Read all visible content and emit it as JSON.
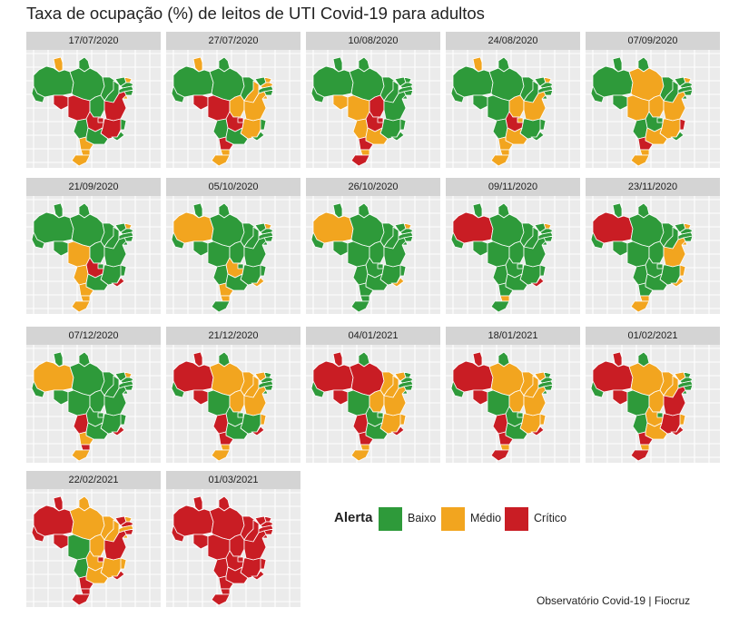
{
  "title": "Taxa de ocupação (%) de leitos de UTI Covid-19 para adultos",
  "legend": {
    "title": "Alerta",
    "items": [
      {
        "key": "baixo",
        "label": "Baixo",
        "color": "#2e9a3a"
      },
      {
        "key": "medio",
        "label": "Médio",
        "color": "#f2a51f"
      },
      {
        "key": "critico",
        "label": "Crítico",
        "color": "#c91d24"
      }
    ]
  },
  "source": "Observatório Covid-19 | Fiocruz",
  "state_order": [
    "RR",
    "AP",
    "AM",
    "PA",
    "AC",
    "RO",
    "MT",
    "TO",
    "MA",
    "PI",
    "CE",
    "RN",
    "PB",
    "PE",
    "AL",
    "SE",
    "BA",
    "GO",
    "DF",
    "MS",
    "MG",
    "ES",
    "RJ",
    "SP",
    "PR",
    "SC",
    "RS"
  ],
  "panels": [
    {
      "date": "17/07/2020",
      "status": {
        "RR": "medio",
        "AP": "baixo",
        "AM": "baixo",
        "PA": "baixo",
        "AC": "baixo",
        "RO": "critico",
        "MT": "critico",
        "TO": "baixo",
        "MA": "baixo",
        "PI": "baixo",
        "CE": "baixo",
        "RN": "medio",
        "PB": "baixo",
        "PE": "baixo",
        "AL": "baixo",
        "SE": "medio",
        "BA": "critico",
        "GO": "critico",
        "DF": "critico",
        "MS": "baixo",
        "MG": "critico",
        "ES": "baixo",
        "RJ": "baixo",
        "SP": "baixo",
        "PR": "medio",
        "SC": "medio",
        "RS": "medio"
      }
    },
    {
      "date": "27/07/2020",
      "status": {
        "RR": "medio",
        "AP": "baixo",
        "AM": "baixo",
        "PA": "baixo",
        "AC": "baixo",
        "RO": "critico",
        "MT": "critico",
        "TO": "medio",
        "MA": "baixo",
        "PI": "medio",
        "CE": "baixo",
        "RN": "medio",
        "PB": "medio",
        "PE": "baixo",
        "AL": "baixo",
        "SE": "medio",
        "BA": "medio",
        "GO": "critico",
        "DF": "critico",
        "MS": "baixo",
        "MG": "medio",
        "ES": "baixo",
        "RJ": "baixo",
        "SP": "baixo",
        "PR": "critico",
        "SC": "medio",
        "RS": "medio"
      }
    },
    {
      "date": "10/08/2020",
      "status": {
        "RR": "baixo",
        "AP": "baixo",
        "AM": "baixo",
        "PA": "baixo",
        "AC": "baixo",
        "RO": "medio",
        "MT": "medio",
        "TO": "critico",
        "MA": "baixo",
        "PI": "baixo",
        "CE": "baixo",
        "RN": "baixo",
        "PB": "baixo",
        "PE": "baixo",
        "AL": "baixo",
        "SE": "baixo",
        "BA": "baixo",
        "GO": "critico",
        "DF": "critico",
        "MS": "medio",
        "MG": "baixo",
        "ES": "baixo",
        "RJ": "baixo",
        "SP": "medio",
        "PR": "critico",
        "SC": "medio",
        "RS": "critico"
      }
    },
    {
      "date": "24/08/2020",
      "status": {
        "RR": "medio",
        "AP": "baixo",
        "AM": "baixo",
        "PA": "baixo",
        "AC": "baixo",
        "RO": "baixo",
        "MT": "baixo",
        "TO": "medio",
        "MA": "baixo",
        "PI": "baixo",
        "CE": "baixo",
        "RN": "medio",
        "PB": "baixo",
        "PE": "baixo",
        "AL": "baixo",
        "SE": "baixo",
        "BA": "medio",
        "GO": "critico",
        "DF": "medio",
        "MS": "baixo",
        "MG": "baixo",
        "ES": "baixo",
        "RJ": "baixo",
        "SP": "medio",
        "PR": "medio",
        "SC": "medio",
        "RS": "medio"
      }
    },
    {
      "date": "07/09/2020",
      "status": {
        "RR": "baixo",
        "AP": "baixo",
        "AM": "baixo",
        "PA": "medio",
        "AC": "baixo",
        "RO": "baixo",
        "MT": "medio",
        "TO": "medio",
        "MA": "baixo",
        "PI": "baixo",
        "CE": "baixo",
        "RN": "medio",
        "PB": "baixo",
        "PE": "baixo",
        "AL": "baixo",
        "SE": "baixo",
        "BA": "medio",
        "GO": "baixo",
        "DF": "baixo",
        "MS": "baixo",
        "MG": "medio",
        "ES": "critico",
        "RJ": "baixo",
        "SP": "medio",
        "PR": "critico",
        "SC": "medio",
        "RS": "medio"
      }
    },
    {
      "date": "21/09/2020",
      "status": {
        "RR": "baixo",
        "AP": "baixo",
        "AM": "baixo",
        "PA": "baixo",
        "AC": "baixo",
        "RO": "baixo",
        "MT": "medio",
        "TO": "baixo",
        "MA": "baixo",
        "PI": "baixo",
        "CE": "baixo",
        "RN": "medio",
        "PB": "baixo",
        "PE": "baixo",
        "AL": "baixo",
        "SE": "baixo",
        "BA": "baixo",
        "GO": "critico",
        "DF": "baixo",
        "MS": "medio",
        "MG": "baixo",
        "ES": "baixo",
        "RJ": "critico",
        "SP": "baixo",
        "PR": "medio",
        "SC": "medio",
        "RS": "medio"
      }
    },
    {
      "date": "05/10/2020",
      "status": {
        "RR": "baixo",
        "AP": "baixo",
        "AM": "medio",
        "PA": "baixo",
        "AC": "baixo",
        "RO": "baixo",
        "MT": "baixo",
        "TO": "baixo",
        "MA": "baixo",
        "PI": "baixo",
        "CE": "baixo",
        "RN": "medio",
        "PB": "baixo",
        "PE": "baixo",
        "AL": "baixo",
        "SE": "baixo",
        "BA": "baixo",
        "GO": "medio",
        "DF": "baixo",
        "MS": "baixo",
        "MG": "baixo",
        "ES": "baixo",
        "RJ": "medio",
        "SP": "baixo",
        "PR": "medio",
        "SC": "medio",
        "RS": "baixo"
      }
    },
    {
      "date": "26/10/2020",
      "status": {
        "RR": "baixo",
        "AP": "baixo",
        "AM": "medio",
        "PA": "baixo",
        "AC": "baixo",
        "RO": "baixo",
        "MT": "baixo",
        "TO": "baixo",
        "MA": "baixo",
        "PI": "baixo",
        "CE": "baixo",
        "RN": "medio",
        "PB": "baixo",
        "PE": "baixo",
        "AL": "baixo",
        "SE": "baixo",
        "BA": "baixo",
        "GO": "baixo",
        "DF": "baixo",
        "MS": "baixo",
        "MG": "baixo",
        "ES": "baixo",
        "RJ": "medio",
        "SP": "baixo",
        "PR": "baixo",
        "SC": "baixo",
        "RS": "baixo"
      }
    },
    {
      "date": "09/11/2020",
      "status": {
        "RR": "baixo",
        "AP": "baixo",
        "AM": "critico",
        "PA": "baixo",
        "AC": "baixo",
        "RO": "baixo",
        "MT": "baixo",
        "TO": "baixo",
        "MA": "baixo",
        "PI": "baixo",
        "CE": "baixo",
        "RN": "medio",
        "PB": "baixo",
        "PE": "baixo",
        "AL": "baixo",
        "SE": "baixo",
        "BA": "baixo",
        "GO": "baixo",
        "DF": "baixo",
        "MS": "baixo",
        "MG": "baixo",
        "ES": "baixo",
        "RJ": "critico",
        "SP": "baixo",
        "PR": "baixo",
        "SC": "medio",
        "RS": "baixo"
      }
    },
    {
      "date": "23/11/2020",
      "status": {
        "RR": "baixo",
        "AP": "baixo",
        "AM": "critico",
        "PA": "baixo",
        "AC": "baixo",
        "RO": "baixo",
        "MT": "baixo",
        "TO": "baixo",
        "MA": "baixo",
        "PI": "baixo",
        "CE": "baixo",
        "RN": "medio",
        "PB": "baixo",
        "PE": "baixo",
        "AL": "baixo",
        "SE": "medio",
        "BA": "medio",
        "GO": "baixo",
        "DF": "baixo",
        "MS": "baixo",
        "MG": "baixo",
        "ES": "medio",
        "RJ": "medio",
        "SP": "baixo",
        "PR": "baixo",
        "SC": "medio",
        "RS": "medio"
      }
    },
    {
      "date": "07/12/2020",
      "status": {
        "RR": "baixo",
        "AP": "baixo",
        "AM": "medio",
        "PA": "baixo",
        "AC": "baixo",
        "RO": "baixo",
        "MT": "baixo",
        "TO": "baixo",
        "MA": "baixo",
        "PI": "baixo",
        "CE": "baixo",
        "RN": "medio",
        "PB": "baixo",
        "PE": "baixo",
        "AL": "baixo",
        "SE": "baixo",
        "BA": "baixo",
        "GO": "baixo",
        "DF": "baixo",
        "MS": "critico",
        "MG": "baixo",
        "ES": "baixo",
        "RJ": "critico",
        "SP": "baixo",
        "PR": "medio",
        "SC": "critico",
        "RS": "medio"
      }
    },
    {
      "date": "21/12/2020",
      "status": {
        "RR": "critico",
        "AP": "baixo",
        "AM": "critico",
        "PA": "medio",
        "AC": "baixo",
        "RO": "critico",
        "MT": "baixo",
        "TO": "medio",
        "MA": "medio",
        "PI": "medio",
        "CE": "medio",
        "RN": "baixo",
        "PB": "baixo",
        "PE": "baixo",
        "AL": "baixo",
        "SE": "baixo",
        "BA": "medio",
        "GO": "baixo",
        "DF": "baixo",
        "MS": "critico",
        "MG": "baixo",
        "ES": "medio",
        "RJ": "critico",
        "SP": "baixo",
        "PR": "critico",
        "SC": "medio",
        "RS": "medio"
      }
    },
    {
      "date": "04/01/2021",
      "status": {
        "RR": "critico",
        "AP": "baixo",
        "AM": "critico",
        "PA": "critico",
        "AC": "baixo",
        "RO": "critico",
        "MT": "baixo",
        "TO": "medio",
        "MA": "medio",
        "PI": "medio",
        "CE": "medio",
        "RN": "baixo",
        "PB": "baixo",
        "PE": "baixo",
        "AL": "baixo",
        "SE": "baixo",
        "BA": "medio",
        "GO": "baixo",
        "DF": "baixo",
        "MS": "critico",
        "MG": "medio",
        "ES": "medio",
        "RJ": "critico",
        "SP": "baixo",
        "PR": "critico",
        "SC": "medio",
        "RS": "medio"
      }
    },
    {
      "date": "18/01/2021",
      "status": {
        "RR": "critico",
        "AP": "baixo",
        "AM": "critico",
        "PA": "medio",
        "AC": "baixo",
        "RO": "critico",
        "MT": "baixo",
        "TO": "medio",
        "MA": "medio",
        "PI": "medio",
        "CE": "medio",
        "RN": "baixo",
        "PB": "baixo",
        "PE": "baixo",
        "AL": "baixo",
        "SE": "baixo",
        "BA": "medio",
        "GO": "baixo",
        "DF": "baixo",
        "MS": "critico",
        "MG": "medio",
        "ES": "medio",
        "RJ": "critico",
        "SP": "baixo",
        "PR": "critico",
        "SC": "medio",
        "RS": "critico"
      }
    },
    {
      "date": "01/02/2021",
      "status": {
        "RR": "critico",
        "AP": "baixo",
        "AM": "critico",
        "PA": "medio",
        "AC": "baixo",
        "RO": "critico",
        "MT": "baixo",
        "TO": "medio",
        "MA": "medio",
        "PI": "medio",
        "CE": "medio",
        "RN": "baixo",
        "PB": "baixo",
        "PE": "baixo",
        "AL": "baixo",
        "SE": "baixo",
        "BA": "critico",
        "GO": "medio",
        "DF": "baixo",
        "MS": "baixo",
        "MG": "critico",
        "ES": "medio",
        "RJ": "critico",
        "SP": "medio",
        "PR": "critico",
        "SC": "medio",
        "RS": "critico"
      }
    },
    {
      "date": "22/02/2021",
      "status": {
        "RR": "critico",
        "AP": "medio",
        "AM": "critico",
        "PA": "medio",
        "AC": "critico",
        "RO": "critico",
        "MT": "baixo",
        "TO": "medio",
        "MA": "medio",
        "PI": "medio",
        "CE": "critico",
        "RN": "medio",
        "PB": "critico",
        "PE": "medio",
        "AL": "critico",
        "SE": "medio",
        "BA": "critico",
        "GO": "medio",
        "DF": "critico",
        "MS": "baixo",
        "MG": "medio",
        "ES": "medio",
        "RJ": "critico",
        "SP": "medio",
        "PR": "critico",
        "SC": "critico",
        "RS": "critico"
      }
    },
    {
      "date": "01/03/2021",
      "status": {
        "RR": "critico",
        "AP": "critico",
        "AM": "critico",
        "PA": "critico",
        "AC": "critico",
        "RO": "critico",
        "MT": "critico",
        "TO": "critico",
        "MA": "critico",
        "PI": "critico",
        "CE": "critico",
        "RN": "critico",
        "PB": "critico",
        "PE": "critico",
        "AL": "critico",
        "SE": "critico",
        "BA": "critico",
        "GO": "critico",
        "DF": "critico",
        "MS": "critico",
        "MG": "critico",
        "ES": "critico",
        "RJ": "critico",
        "SP": "critico",
        "PR": "critico",
        "SC": "critico",
        "RS": "critico"
      }
    }
  ]
}
